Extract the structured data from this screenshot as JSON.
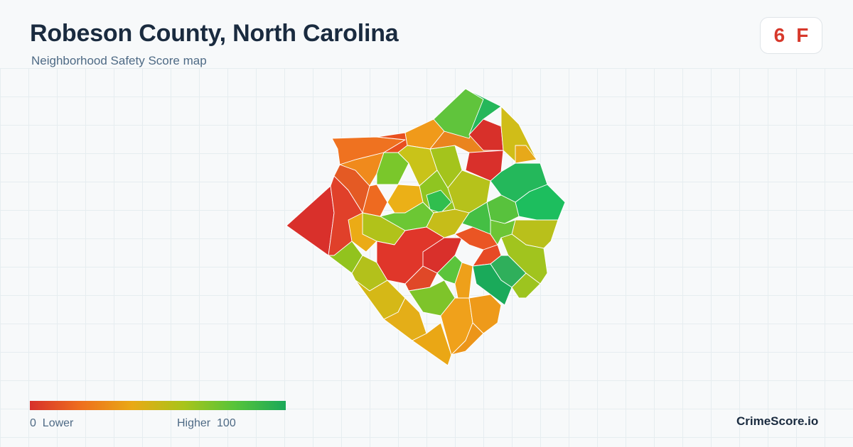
{
  "header": {
    "title": "Robeson County, North Carolina",
    "subtitle": "Neighborhood Safety Score map"
  },
  "score": {
    "value": "6",
    "grade": "F",
    "color": "#d7382b"
  },
  "legend": {
    "low_value": "0",
    "low_label": "Lower",
    "high_label": "Higher",
    "high_value": "100",
    "gradient": [
      "#d7302b",
      "#ee6f1e",
      "#e9a915",
      "#a9c41a",
      "#57c43a",
      "#1aa859"
    ]
  },
  "brand": {
    "name": "CrimeScore.io"
  },
  "map_regions": [
    {
      "name": "west-tip",
      "score": 4
    },
    {
      "name": "west-strip",
      "score": 10
    },
    {
      "name": "northwest",
      "score": 20
    },
    {
      "name": "north-center-west",
      "score": 28
    },
    {
      "name": "southwest",
      "score": 30
    },
    {
      "name": "central-south",
      "score": 8
    },
    {
      "name": "south",
      "score": 55
    },
    {
      "name": "south-center",
      "score": 40
    },
    {
      "name": "southeast-tip",
      "score": 35
    },
    {
      "name": "central",
      "score": 60
    },
    {
      "name": "east",
      "score": 90
    },
    {
      "name": "northeast-green",
      "score": 85
    },
    {
      "name": "north-red",
      "score": 6
    },
    {
      "name": "southeast-green",
      "score": 95
    },
    {
      "name": "east-south",
      "score": 70
    }
  ]
}
